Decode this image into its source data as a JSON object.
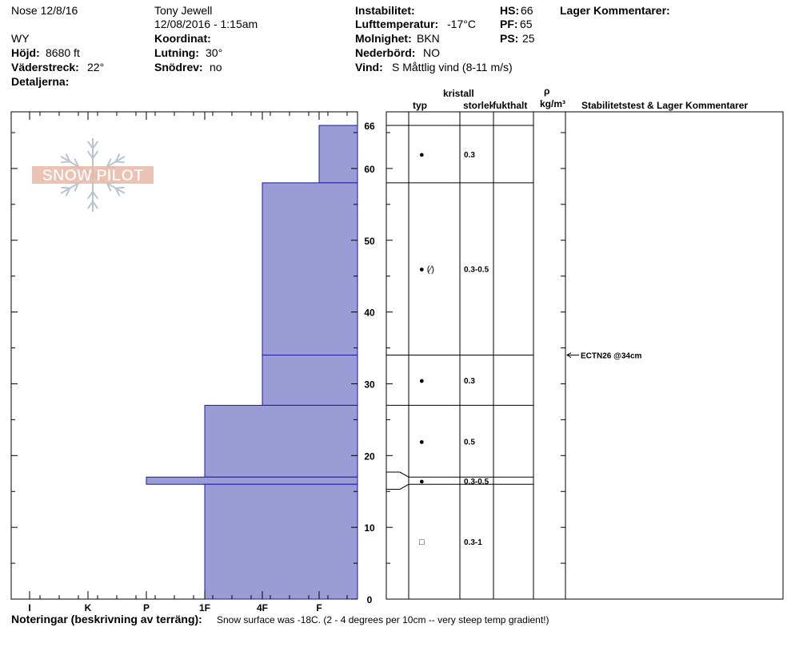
{
  "header": {
    "location": "Nose 12/8/16",
    "state": "WY",
    "elevation_label": "Höjd:",
    "elevation_value": "8680 ft",
    "aspect_label": "Väderstreck:",
    "aspect_value": "22°",
    "details_label": "Detaljerna:",
    "observer": "Tony Jewell",
    "datetime": "12/08/2016 - 1:15am",
    "coord_label": "Koordinat:",
    "slope_label": "Lutning:",
    "slope_value": "30°",
    "drift_label": "Snödrev:",
    "drift_value": "no",
    "stability_label": "Instabilitet:",
    "airtemp_label": "Lufttemperatur:",
    "airtemp_value": "-17°C",
    "sky_label": "Molnighet:",
    "sky_value": "BKN",
    "precip_label": "Nederbörd:",
    "precip_value": "NO",
    "wind_label": "Vind:",
    "wind_value": "S Måttlig vind (8-11 m/s)",
    "hs_label": "HS:",
    "hs_value": "66",
    "pf_label": "PF:",
    "pf_value": "65",
    "ps_label": "PS:",
    "ps_value": "25",
    "layer_comments_label": "Lager Kommentarer:"
  },
  "columns": {
    "crystal": "kristall",
    "type": "typ",
    "size": "storlek",
    "moisture": "fukthalt",
    "rho": "ρ",
    "density_unit": "kg/m³",
    "stability": "Stabilitetstest & Lager Kommentarer"
  },
  "logo_text": "SNOW PILOT",
  "notes_label": "Noteringar (beskrivning av terräng):",
  "notes_value": "Snow surface was -18C. (2 - 4 degrees per 10cm -- very steep temp gradient!)",
  "colors": {
    "layer_fill": "#9b9bd6",
    "layer_stroke": "#1a1aa0",
    "logo": "#e8b9a8",
    "flake": "#b8c4d0"
  },
  "chart_data": {
    "type": "bar",
    "hardness_scale": [
      "I",
      "K",
      "P",
      "1F",
      "4F",
      "F"
    ],
    "depth_ticks": [
      "0",
      "10",
      "20",
      "30",
      "40",
      "50",
      "60",
      "66"
    ],
    "ylim": [
      0,
      66
    ],
    "layers": [
      {
        "top": 66,
        "bottom": 58,
        "hardness": "F",
        "grain": "●",
        "size": "0.3"
      },
      {
        "top": 58,
        "bottom": 34,
        "hardness": "4F",
        "grain": "● (⁄)",
        "size": "0.3-0.5"
      },
      {
        "top": 34,
        "bottom": 27,
        "hardness": "1F-4F",
        "grain": "●",
        "size": "0.3"
      },
      {
        "top": 27,
        "bottom": 17,
        "hardness": "1F",
        "grain": "●",
        "size": "0.5"
      },
      {
        "top": 17,
        "bottom": 16,
        "hardness": "P",
        "grain": "●",
        "size": "0.3-0.5"
      },
      {
        "top": 16,
        "bottom": 0,
        "hardness": "1F",
        "grain": "□",
        "size": "0.3-1"
      }
    ],
    "stability_tests": [
      {
        "label": "ECTN26 @34cm",
        "depth": 34
      }
    ]
  }
}
